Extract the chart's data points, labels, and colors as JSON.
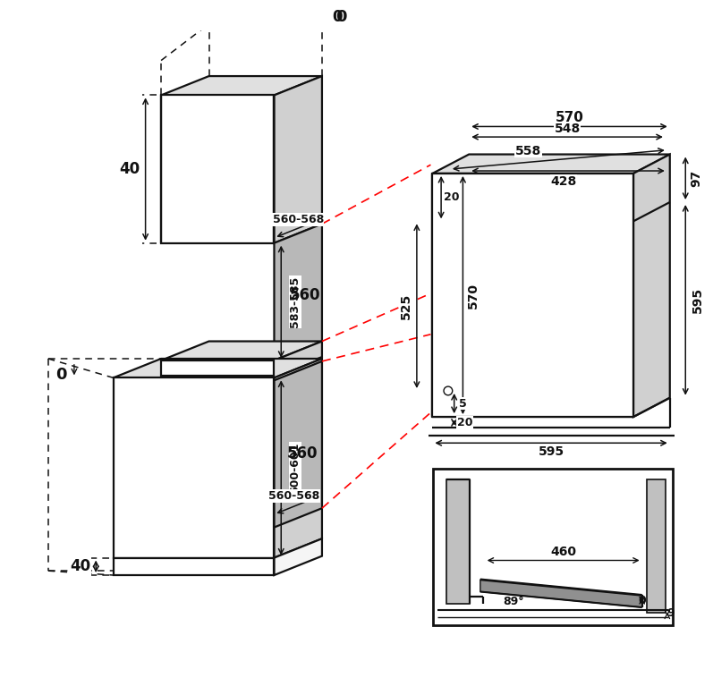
{
  "bg_color": "#ffffff",
  "line_color": "#111111",
  "gray_fill": "#b8b8b8",
  "light_gray": "#e0e0e0",
  "mid_gray": "#d0d0d0",
  "red_dashed": "#ff0000",
  "lw_main": 1.6,
  "lw_thin": 1.0,
  "lw_dash": 1.1,
  "dims": {
    "top_0": "0",
    "top_40": "40",
    "mid_0": "0",
    "bot_40": "40",
    "v583": "583-585",
    "h560_568_top": "560-568",
    "h560_top": "560",
    "v600": "600-601",
    "h560_bot": "560",
    "h560_568_bot": "560-568",
    "r570h": "570",
    "r548h": "548",
    "r558h": "558",
    "r428h": "428",
    "r20top": "20",
    "r97": "97",
    "r525": "525",
    "r570v": "570",
    "r595v": "595",
    "r5": "5",
    "r20bot": "20",
    "r595h": "595",
    "i460": "460",
    "i89": "89°",
    "i0": "0",
    "i9": "9"
  }
}
